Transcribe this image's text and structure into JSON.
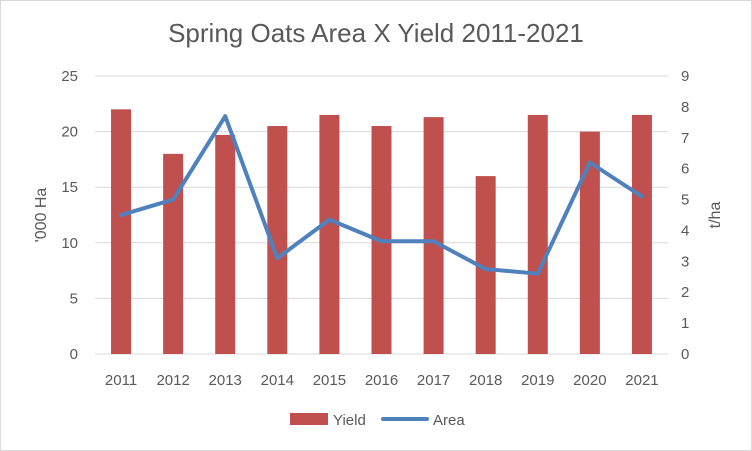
{
  "chart_data": {
    "type": "bar+line",
    "title": "Spring Oats Area X Yield 2011-2021",
    "categories": [
      "2011",
      "2012",
      "2013",
      "2014",
      "2015",
      "2016",
      "2017",
      "2018",
      "2019",
      "2020",
      "2021"
    ],
    "series": [
      {
        "name": "Yield",
        "type": "bar",
        "axis": "left",
        "color": "#c0504d",
        "values": [
          22.0,
          18.0,
          19.7,
          20.5,
          21.5,
          20.5,
          21.3,
          16.0,
          21.5,
          20.0,
          21.5
        ]
      },
      {
        "name": "Area",
        "type": "line",
        "axis": "right",
        "color": "#4f81bd",
        "values": [
          4.5,
          5.0,
          7.7,
          3.1,
          4.35,
          3.65,
          3.65,
          2.75,
          2.6,
          6.2,
          5.1
        ]
      }
    ],
    "ylabel_left": "'000 Ha",
    "ylabel_right": "t/ha",
    "ylim_left": [
      0,
      25
    ],
    "ylim_right": [
      0,
      9
    ],
    "yticks_left": [
      "0",
      "5",
      "10",
      "15",
      "20",
      "25"
    ],
    "yticks_right": [
      "0",
      "1",
      "2",
      "3",
      "4",
      "5",
      "6",
      "7",
      "8",
      "9"
    ],
    "grid": true,
    "legend_position": "bottom"
  }
}
